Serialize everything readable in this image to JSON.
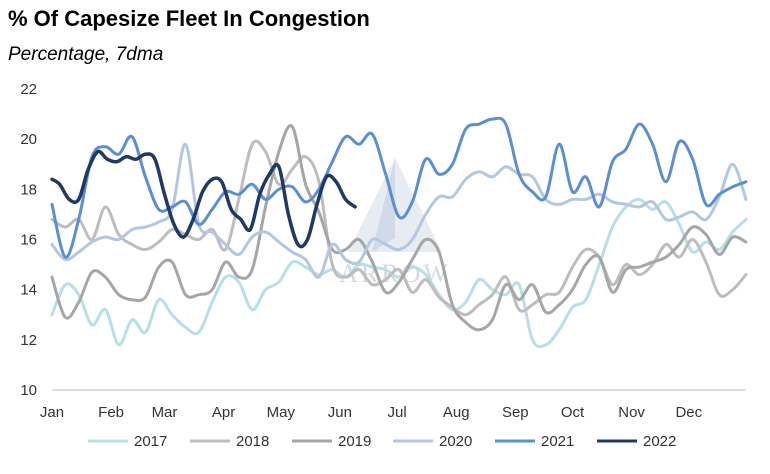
{
  "title": "% Of Capesize Fleet In Congestion",
  "subtitle": "Percentage, 7dma",
  "watermark": "ARROW",
  "chart_data": {
    "type": "line",
    "title": "% Of Capesize Fleet In Congestion",
    "subtitle": "Percentage, 7dma",
    "xlabel": "",
    "ylabel": "",
    "ylim": [
      10,
      22
    ],
    "yticks": [
      10,
      12,
      14,
      16,
      18,
      20,
      22
    ],
    "months": [
      "Jan",
      "Feb",
      "Mar",
      "Apr",
      "May",
      "Jun",
      "Jul",
      "Aug",
      "Sep",
      "Oct",
      "Nov",
      "Dec"
    ],
    "x_unit": "day of year",
    "grid": false,
    "legend_position": "bottom",
    "series": [
      {
        "name": "2017",
        "color": "#b7dfe8",
        "width": 3,
        "x": [
          1,
          8,
          15,
          22,
          29,
          36,
          43,
          50,
          57,
          64,
          71,
          78,
          85,
          92,
          99,
          106,
          113,
          120,
          127,
          134,
          141,
          148,
          155,
          162,
          169,
          176,
          183,
          190,
          197,
          204,
          211,
          218,
          225,
          232,
          239,
          246,
          253,
          260,
          267,
          274,
          281,
          288,
          295,
          302,
          309,
          316,
          323,
          330,
          337,
          344,
          351,
          358,
          365
        ],
        "y": [
          13.0,
          14.2,
          13.8,
          12.6,
          13.2,
          11.8,
          12.8,
          12.3,
          13.6,
          13.0,
          12.5,
          12.3,
          13.5,
          14.5,
          14.3,
          13.2,
          14.0,
          14.3,
          15.1,
          14.9,
          14.6,
          14.8,
          14.5,
          15.0,
          14.9,
          14.8,
          14.5,
          14.9,
          14.6,
          13.8,
          13.2,
          13.5,
          14.4,
          14.0,
          13.8,
          14.2,
          12.0,
          11.8,
          12.4,
          13.3,
          13.6,
          15.0,
          16.5,
          17.3,
          17.6,
          17.2,
          17.5,
          16.6,
          15.5,
          15.9,
          15.6,
          16.3,
          16.8
        ]
      },
      {
        "name": "2018",
        "color": "#bdbdbd",
        "width": 3,
        "x": [
          1,
          8,
          15,
          22,
          29,
          36,
          43,
          50,
          57,
          64,
          71,
          78,
          85,
          92,
          99,
          106,
          113,
          120,
          127,
          134,
          141,
          148,
          155,
          162,
          169,
          176,
          183,
          190,
          197,
          204,
          211,
          218,
          225,
          232,
          239,
          246,
          253,
          260,
          267,
          274,
          281,
          288,
          295,
          302,
          309,
          316,
          323,
          330,
          337,
          344,
          351,
          358,
          365
        ],
        "y": [
          16.8,
          16.5,
          16.8,
          16.0,
          17.3,
          16.2,
          15.8,
          15.6,
          15.9,
          16.4,
          16.2,
          16.0,
          16.4,
          15.6,
          17.6,
          19.8,
          19.5,
          18.2,
          18.8,
          19.3,
          18.3,
          15.0,
          14.5,
          14.8,
          14.2,
          14.4,
          14.8,
          13.9,
          14.4,
          13.7,
          13.3,
          13.0,
          13.4,
          13.8,
          14.5,
          13.2,
          13.4,
          13.8,
          13.9,
          14.9,
          15.6,
          15.3,
          14.2,
          15.0,
          14.6,
          15.0,
          15.8,
          15.3,
          16.0,
          15.1,
          13.8,
          14.0,
          14.6
        ]
      },
      {
        "name": "2019",
        "color": "#a6a6a6",
        "width": 3,
        "x": [
          1,
          8,
          15,
          22,
          29,
          36,
          43,
          50,
          57,
          64,
          71,
          78,
          85,
          92,
          99,
          106,
          113,
          120,
          127,
          134,
          141,
          148,
          155,
          162,
          169,
          176,
          183,
          190,
          197,
          204,
          211,
          218,
          225,
          232,
          239,
          246,
          253,
          260,
          267,
          274,
          281,
          288,
          295,
          302,
          309,
          316,
          323,
          330,
          337,
          344,
          351,
          358,
          365
        ],
        "y": [
          14.5,
          12.9,
          13.5,
          14.7,
          14.5,
          13.8,
          13.6,
          13.7,
          14.9,
          15.1,
          13.8,
          13.8,
          14.0,
          15.1,
          14.5,
          14.8,
          17.3,
          19.5,
          20.5,
          18.2,
          17.1,
          15.6,
          15.6,
          16.0,
          15.1,
          13.9,
          14.3,
          15.2,
          16.0,
          15.5,
          13.4,
          12.7,
          12.4,
          12.8,
          14.2,
          13.6,
          14.2,
          13.1,
          13.4,
          14.0,
          15.0,
          15.3,
          13.9,
          14.8,
          14.9,
          15.1,
          15.3,
          15.8,
          16.5,
          16.2,
          15.4,
          16.1,
          15.9
        ]
      },
      {
        "name": "2020",
        "color": "#b4c7e0",
        "width": 3,
        "x": [
          1,
          8,
          15,
          22,
          29,
          36,
          43,
          50,
          57,
          64,
          71,
          78,
          85,
          92,
          99,
          106,
          113,
          120,
          127,
          134,
          141,
          148,
          155,
          162,
          169,
          176,
          183,
          190,
          197,
          204,
          211,
          218,
          225,
          232,
          239,
          246,
          253,
          260,
          267,
          274,
          281,
          288,
          295,
          302,
          309,
          316,
          323,
          330,
          337,
          344,
          351,
          358,
          365
        ],
        "y": [
          15.8,
          15.2,
          15.5,
          15.9,
          16.1,
          16.0,
          16.4,
          16.5,
          16.7,
          17.2,
          19.8,
          16.6,
          16.3,
          15.8,
          15.4,
          16.1,
          16.3,
          15.9,
          15.5,
          15.2,
          14.5,
          15.8,
          15.2,
          15.1,
          16.0,
          15.8,
          15.6,
          16.0,
          17.0,
          17.7,
          17.7,
          18.4,
          18.7,
          18.5,
          18.9,
          18.6,
          18.5,
          17.6,
          17.4,
          17.6,
          17.6,
          17.8,
          17.5,
          17.4,
          17.3,
          17.5,
          16.8,
          16.9,
          17.1,
          16.8,
          17.7,
          19.0,
          17.6
        ]
      },
      {
        "name": "2021",
        "color": "#5b8fcf",
        "width": 3,
        "x": [
          1,
          8,
          15,
          22,
          29,
          36,
          43,
          50,
          57,
          64,
          71,
          78,
          85,
          92,
          99,
          106,
          113,
          120,
          127,
          134,
          141,
          148,
          155,
          162,
          169,
          176,
          183,
          190,
          197,
          204,
          211,
          218,
          225,
          232,
          239,
          246,
          253,
          260,
          267,
          274,
          281,
          288,
          295,
          302,
          309,
          316,
          323,
          330,
          337,
          344,
          351,
          358,
          365
        ],
        "y": [
          17.4,
          15.3,
          16.8,
          19.3,
          19.7,
          19.4,
          20.1,
          18.5,
          17.2,
          17.3,
          17.5,
          16.6,
          17.2,
          17.9,
          17.8,
          18.2,
          17.6,
          18.0,
          18.1,
          17.5,
          18.0,
          19.1,
          20.1,
          19.8,
          20.2,
          18.6,
          16.9,
          17.5,
          19.2,
          18.6,
          19.0,
          20.4,
          20.6,
          20.8,
          20.6,
          18.6,
          17.9,
          17.7,
          19.8,
          17.9,
          18.5,
          17.3,
          19.1,
          19.6,
          20.6,
          19.8,
          18.3,
          19.9,
          19.2,
          17.4,
          17.8,
          18.1,
          18.3
        ]
      },
      {
        "name": "2022",
        "color": "#1f3864",
        "width": 3.5,
        "x": [
          1,
          5,
          10,
          15,
          20,
          25,
          30,
          35,
          40,
          45,
          50,
          55,
          60,
          65,
          70,
          75,
          80,
          85,
          90,
          95,
          100,
          105,
          110,
          115,
          120,
          125,
          130,
          135,
          140,
          145,
          150,
          155,
          160
        ],
        "y": [
          18.4,
          18.2,
          17.6,
          17.6,
          18.8,
          19.5,
          19.2,
          19.1,
          19.3,
          19.2,
          19.4,
          19.2,
          17.8,
          16.6,
          16.1,
          16.8,
          17.9,
          18.4,
          18.3,
          17.2,
          16.8,
          16.4,
          17.8,
          18.6,
          18.9,
          17.0,
          15.8,
          16.0,
          17.4,
          18.5,
          18.3,
          17.6,
          17.3
        ]
      }
    ]
  }
}
